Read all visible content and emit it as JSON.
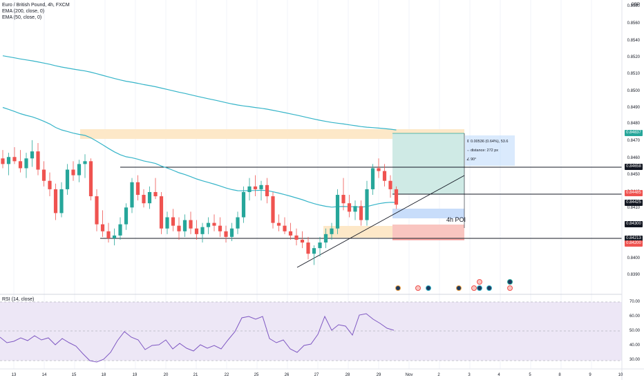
{
  "legend": {
    "symbol": "Euro / British Pound, 4h, FXCM",
    "ema200": "EMA (200, close, 0)",
    "ema50": "EMA (50, close, 0)",
    "rsi": "RSI (14, close)"
  },
  "currency_label": "GBP",
  "colors": {
    "up": "#26a69a",
    "down": "#ef5350",
    "ema": "#35b4c8",
    "rsi_line": "#7e57c2",
    "rsi_band": "#ede7f6",
    "zone_supply": "#fde8c8",
    "zone_target": "#cfeae5",
    "zone_stop": "#f9c5c0",
    "zone_poi": "#c8ddfa"
  },
  "price_axis": {
    "ticks": [
      "0.8580",
      "0.8560",
      "0.8540",
      "0.8520",
      "0.8510",
      "0.8500",
      "0.8490",
      "0.8480",
      "0.8470",
      "0.8460",
      "0.8450",
      "0.8440",
      "0.8410",
      "0.8400",
      "0.8390"
    ],
    "tags": [
      {
        "label": "0.84837",
        "type": "green"
      },
      {
        "label": "0.84658",
        "type": "dark"
      },
      {
        "label": "0.84485",
        "type": "red"
      },
      {
        "label": "0.84425",
        "type": "dark"
      },
      {
        "label": "0.84300",
        "type": "dark"
      },
      {
        "label": "0.84213",
        "type": "dark"
      },
      {
        "label": "0.84200",
        "type": "red"
      }
    ]
  },
  "rsi_axis": {
    "ticks": [
      "70.00",
      "60.00",
      "50.00",
      "40.00",
      "30.00"
    ]
  },
  "time_axis": {
    "labels": [
      "13",
      "14",
      "15",
      "18",
      "19",
      "20",
      "21",
      "22",
      "25",
      "26",
      "27",
      "28",
      "29",
      "Nov",
      "2",
      "3",
      "4",
      "5",
      "8",
      "9",
      "10"
    ]
  },
  "measure": {
    "line1": "0.00536 (0.64%), 53.6",
    "line2": "distance: 272 px",
    "line3": "90°"
  },
  "poi_label": "4h POI",
  "chart_data": {
    "type": "candlestick",
    "title": "Euro / British Pound, 4h, FXCM",
    "y_axis_range": [
      0.8388,
      0.8595
    ],
    "candles_ohlc": [
      [
        0.8482,
        0.8488,
        0.8475,
        0.8478
      ],
      [
        0.8478,
        0.8486,
        0.847,
        0.8483
      ],
      [
        0.8483,
        0.849,
        0.8478,
        0.848
      ],
      [
        0.848,
        0.8488,
        0.8472,
        0.8475
      ],
      [
        0.8475,
        0.8486,
        0.8468,
        0.8482
      ],
      [
        0.8482,
        0.8495,
        0.8476,
        0.8487
      ],
      [
        0.8487,
        0.8493,
        0.847,
        0.8474
      ],
      [
        0.8474,
        0.848,
        0.8462,
        0.8466
      ],
      [
        0.8466,
        0.8472,
        0.8455,
        0.846
      ],
      [
        0.846,
        0.8464,
        0.8438,
        0.8443
      ],
      [
        0.8443,
        0.8465,
        0.844,
        0.846
      ],
      [
        0.846,
        0.8478,
        0.8456,
        0.8474
      ],
      [
        0.8474,
        0.848,
        0.8466,
        0.847
      ],
      [
        0.847,
        0.8481,
        0.8465,
        0.8478
      ],
      [
        0.8478,
        0.8485,
        0.8468,
        0.848
      ],
      [
        0.848,
        0.8482,
        0.8452,
        0.8455
      ],
      [
        0.8455,
        0.846,
        0.843,
        0.8435
      ],
      [
        0.8435,
        0.8445,
        0.8426,
        0.843
      ],
      [
        0.843,
        0.8436,
        0.8422,
        0.8425
      ],
      [
        0.8425,
        0.8432,
        0.842,
        0.8427
      ],
      [
        0.8427,
        0.844,
        0.8424,
        0.8435
      ],
      [
        0.8435,
        0.845,
        0.8431,
        0.8447
      ],
      [
        0.8447,
        0.8468,
        0.8443,
        0.8465
      ],
      [
        0.8465,
        0.847,
        0.8452,
        0.8456
      ],
      [
        0.8456,
        0.846,
        0.8447,
        0.845
      ],
      [
        0.845,
        0.8462,
        0.8446,
        0.8458
      ],
      [
        0.8458,
        0.8468,
        0.8453,
        0.8455
      ],
      [
        0.8455,
        0.8458,
        0.8428,
        0.8432
      ],
      [
        0.8432,
        0.8444,
        0.8428,
        0.844
      ],
      [
        0.844,
        0.8446,
        0.843,
        0.8434
      ],
      [
        0.8434,
        0.844,
        0.8424,
        0.843
      ],
      [
        0.843,
        0.8442,
        0.8426,
        0.8438
      ],
      [
        0.8438,
        0.8444,
        0.8428,
        0.8432
      ],
      [
        0.8432,
        0.8438,
        0.8424,
        0.8428
      ],
      [
        0.8428,
        0.8436,
        0.8422,
        0.8433
      ],
      [
        0.8433,
        0.844,
        0.8428,
        0.8436
      ],
      [
        0.8436,
        0.8442,
        0.843,
        0.8434
      ],
      [
        0.8434,
        0.844,
        0.8426,
        0.843
      ],
      [
        0.843,
        0.8434,
        0.8422,
        0.8426
      ],
      [
        0.8426,
        0.8436,
        0.8423,
        0.8432
      ],
      [
        0.8432,
        0.8444,
        0.8428,
        0.844
      ],
      [
        0.844,
        0.8462,
        0.8436,
        0.8458
      ],
      [
        0.8458,
        0.8468,
        0.8452,
        0.8462
      ],
      [
        0.8462,
        0.847,
        0.8455,
        0.846
      ],
      [
        0.846,
        0.8466,
        0.8452,
        0.8463
      ],
      [
        0.8463,
        0.8468,
        0.845,
        0.8455
      ],
      [
        0.8455,
        0.8458,
        0.8432,
        0.8436
      ],
      [
        0.8436,
        0.8442,
        0.843,
        0.8434
      ],
      [
        0.8434,
        0.844,
        0.8428,
        0.843
      ],
      [
        0.843,
        0.8436,
        0.8424,
        0.8427
      ],
      [
        0.8427,
        0.8432,
        0.842,
        0.8424
      ],
      [
        0.8424,
        0.843,
        0.8418,
        0.8422
      ],
      [
        0.8422,
        0.8426,
        0.841,
        0.8414
      ],
      [
        0.8414,
        0.842,
        0.8406,
        0.8418
      ],
      [
        0.8418,
        0.8426,
        0.8412,
        0.8422
      ],
      [
        0.8422,
        0.8432,
        0.8418,
        0.8428
      ],
      [
        0.8428,
        0.8436,
        0.8424,
        0.8432
      ],
      [
        0.8432,
        0.846,
        0.8428,
        0.8456
      ],
      [
        0.8456,
        0.8468,
        0.8445,
        0.845
      ],
      [
        0.845,
        0.8456,
        0.844,
        0.8444
      ],
      [
        0.8444,
        0.8452,
        0.8438,
        0.8448
      ],
      [
        0.8448,
        0.8452,
        0.8434,
        0.8438
      ],
      [
        0.8438,
        0.8466,
        0.8434,
        0.846
      ],
      [
        0.846,
        0.8478,
        0.8456,
        0.8475
      ],
      [
        0.8475,
        0.8482,
        0.8468,
        0.8473
      ],
      [
        0.8473,
        0.8478,
        0.8462,
        0.8466
      ],
      [
        0.8466,
        0.847,
        0.8454,
        0.846
      ],
      [
        0.846,
        0.8462,
        0.8446,
        0.8449
      ]
    ]
  }
}
